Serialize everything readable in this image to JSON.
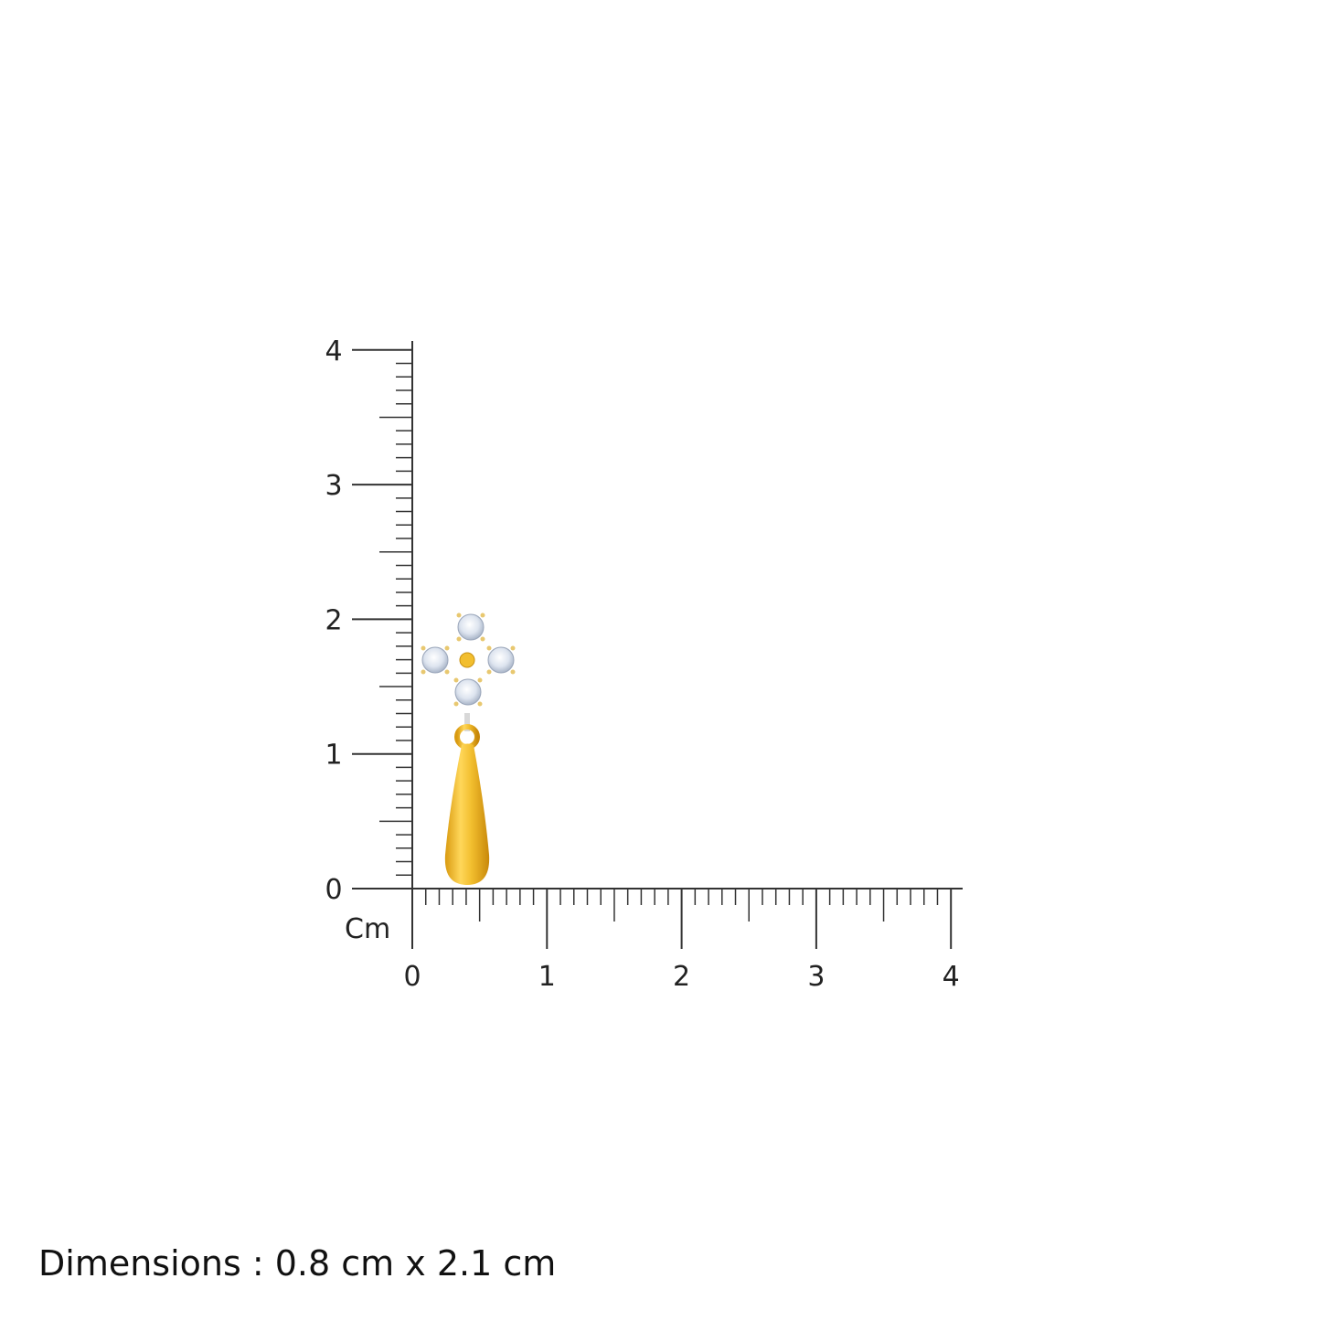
{
  "ruler": {
    "unit_label": "Cm",
    "y_labels": [
      "0",
      "1",
      "2",
      "3",
      "4"
    ],
    "x_labels": [
      "0",
      "1",
      "2",
      "3",
      "4"
    ],
    "divisions_per_unit": 10,
    "line_color": "#333333"
  },
  "product": {
    "metal_color": "#F2BE2E",
    "stone_color": "#E6ECF5",
    "stone_count": 4
  },
  "caption": "Dimensions : 0.8 cm x 2.1 cm"
}
